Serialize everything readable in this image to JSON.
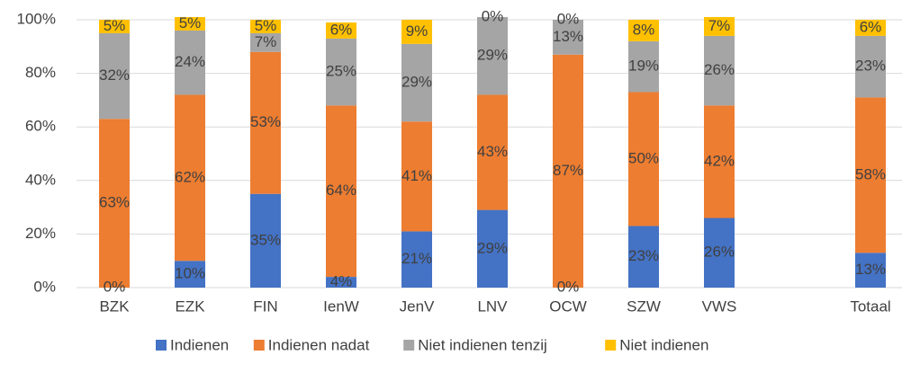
{
  "chart_data": {
    "type": "stacked_bar",
    "categories": [
      "BZK",
      "EZK",
      "FIN",
      "IenW",
      "JenV",
      "LNV",
      "OCW",
      "SZW",
      "VWS",
      null,
      "Totaal"
    ],
    "series": [
      {
        "name": "Indienen",
        "color": "#4472c4",
        "values": [
          0,
          10,
          35,
          4,
          21,
          29,
          0,
          23,
          26,
          null,
          13
        ],
        "value_labels": [
          "0%",
          "10%",
          "35%",
          "4%",
          "21%",
          "29%",
          "0%",
          "23%",
          "26%",
          null,
          "13%"
        ]
      },
      {
        "name": "Indienen nadat",
        "color": "#ed7d31",
        "values": [
          63,
          62,
          53,
          64,
          41,
          43,
          87,
          50,
          42,
          null,
          58
        ],
        "value_labels": [
          "63%",
          "62%",
          "53%",
          "64%",
          "41%",
          "43%",
          "87%",
          "50%",
          "42%",
          null,
          "58%"
        ]
      },
      {
        "name": "Niet indienen tenzij",
        "color": "#a5a5a5",
        "values": [
          32,
          24,
          7,
          25,
          29,
          29,
          13,
          19,
          26,
          null,
          23
        ],
        "value_labels": [
          "32%",
          "24%",
          "7%",
          "25%",
          "29%",
          "29%",
          "13%",
          "19%",
          "26%",
          null,
          "23%"
        ]
      },
      {
        "name": "Niet indienen",
        "color": "#ffc000",
        "values": [
          5,
          5,
          5,
          6,
          9,
          0,
          0,
          8,
          7,
          null,
          6
        ],
        "value_labels": [
          "5%",
          "5%",
          "5%",
          "6%",
          "9%",
          "0%",
          "0%",
          "8%",
          "7%",
          null,
          "6%"
        ]
      }
    ],
    "ylim": [
      0,
      100
    ],
    "yticks": [
      {
        "value": 0,
        "label": "0%"
      },
      {
        "value": 20,
        "label": "20%"
      },
      {
        "value": 40,
        "label": "40%"
      },
      {
        "value": 60,
        "label": "60%"
      },
      {
        "value": 80,
        "label": "80%"
      },
      {
        "value": 100,
        "label": "100%"
      }
    ],
    "grid": true,
    "legend": "bottom"
  }
}
